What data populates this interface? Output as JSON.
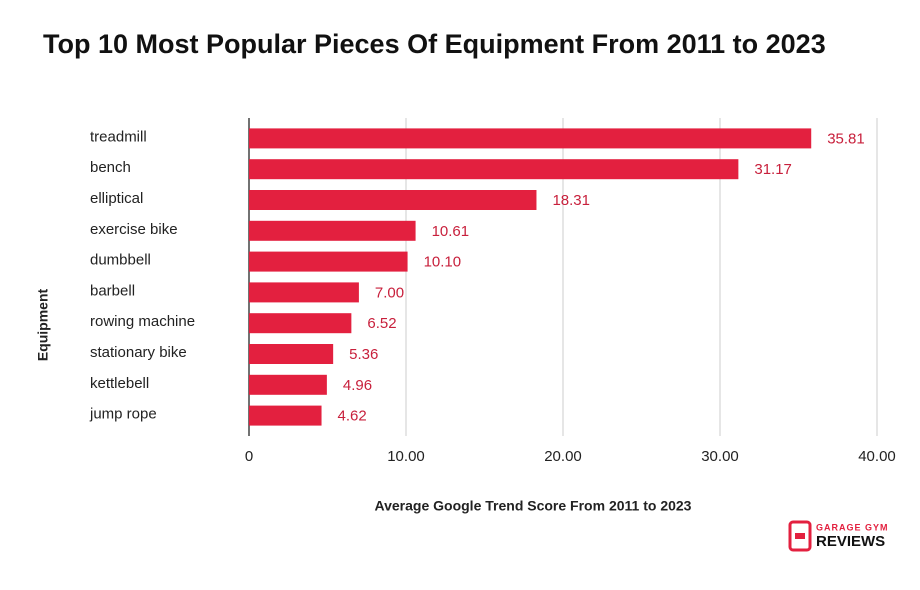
{
  "chart_data": {
    "type": "hbar",
    "title": "Top 10 Most Popular Pieces Of Equipment From 2011 to 2023",
    "x_label": "Average Google Trend Score From 2011 to 2023",
    "y_label": "Equipment",
    "categories": [
      "treadmill",
      "bench",
      "elliptical",
      "exercise bike",
      "dumbbell",
      "barbell",
      "rowing machine",
      "stationary bike",
      "kettlebell",
      "jump rope"
    ],
    "values": [
      35.81,
      31.17,
      18.31,
      10.61,
      10.1,
      7.0,
      6.52,
      5.36,
      4.96,
      4.62
    ],
    "value_labels": [
      "35.81",
      "31.17",
      "18.31",
      "10.61",
      "10.10",
      "7.00",
      "6.52",
      "5.36",
      "4.96",
      "4.62"
    ],
    "color": "#e3203f",
    "xlim": [
      0,
      40
    ],
    "xticks": [
      0,
      {
        "value": 10,
        "label": "10.00"
      },
      {
        "value": 20,
        "label": "20.00"
      },
      {
        "value": 30,
        "label": "30.00"
      },
      {
        "value": 40,
        "label": "40.00"
      }
    ],
    "grid": true
  },
  "brand": {
    "top": "GARAGE GYM",
    "bottom": "REVIEWS"
  }
}
